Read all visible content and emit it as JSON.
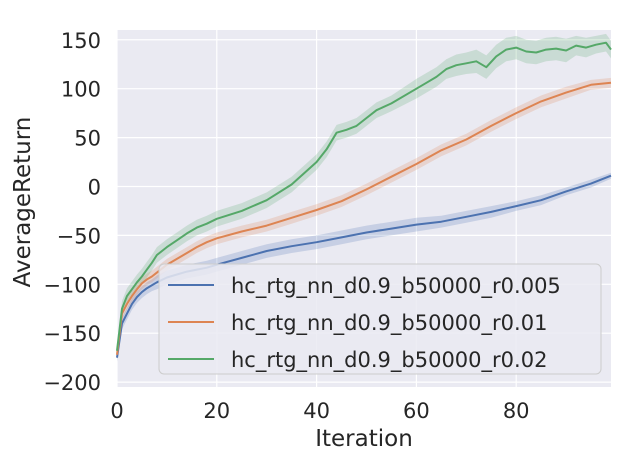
{
  "chart_data": {
    "type": "line",
    "title": "",
    "xlabel": "Iteration",
    "ylabel": "AverageReturn",
    "xlim": [
      0,
      99
    ],
    "ylim": [
      -205,
      160
    ],
    "xticks": [
      0,
      20,
      40,
      60,
      80
    ],
    "yticks": [
      -200,
      -150,
      -100,
      -50,
      0,
      50,
      100,
      150
    ],
    "xtick_labels": [
      "0",
      "20",
      "40",
      "60",
      "80"
    ],
    "ytick_labels": [
      "−200",
      "−150",
      "−100",
      "−50",
      "0",
      "50",
      "100",
      "150"
    ],
    "grid": true,
    "background": "#EAEAF2",
    "legend_position": "lower-right",
    "shaded_band": "variance around each series",
    "series": [
      {
        "name": "hc_rtg_nn_d0.9_b50000_r0.005",
        "color": "#4C72B0",
        "x": [
          0,
          1,
          2,
          3,
          4,
          5,
          6,
          7,
          8,
          10,
          12,
          14,
          16,
          18,
          20,
          25,
          30,
          35,
          40,
          45,
          50,
          55,
          60,
          65,
          70,
          75,
          80,
          85,
          90,
          95,
          99
        ],
        "y": [
          -175,
          -140,
          -130,
          -120,
          -113,
          -108,
          -104,
          -101,
          -98,
          -93,
          -90,
          -87,
          -85,
          -83,
          -80,
          -73,
          -66,
          -61,
          -57,
          -52,
          -47,
          -43,
          -39,
          -36,
          -31,
          -26,
          -20,
          -14,
          -5,
          3,
          11
        ],
        "band": [
          4,
          6,
          6,
          6,
          6,
          6,
          6,
          6,
          7,
          7,
          7,
          7,
          7,
          7,
          7,
          7,
          7,
          7,
          7,
          7,
          7,
          7,
          7,
          6,
          6,
          6,
          5,
          5,
          4,
          4,
          3
        ]
      },
      {
        "name": "hc_rtg_nn_d0.9_b50000_r0.01",
        "color": "#DD8452",
        "x": [
          0,
          1,
          2,
          3,
          4,
          5,
          6,
          7,
          8,
          10,
          12,
          14,
          16,
          18,
          20,
          25,
          30,
          35,
          40,
          45,
          50,
          55,
          60,
          65,
          70,
          75,
          80,
          85,
          90,
          95,
          99
        ],
        "y": [
          -172,
          -130,
          -120,
          -112,
          -105,
          -99,
          -95,
          -92,
          -88,
          -80,
          -74,
          -68,
          -62,
          -57,
          -53,
          -46,
          -40,
          -32,
          -24,
          -15,
          -3,
          10,
          23,
          37,
          48,
          62,
          75,
          87,
          96,
          104,
          106
        ],
        "band": [
          4,
          6,
          6,
          6,
          6,
          6,
          6,
          6,
          6,
          6,
          6,
          6,
          6,
          6,
          6,
          6,
          6,
          6,
          6,
          6,
          6,
          6,
          6,
          6,
          6,
          6,
          6,
          6,
          6,
          5,
          5
        ]
      },
      {
        "name": "hc_rtg_nn_d0.9_b50000_r0.02",
        "color": "#55A868",
        "x": [
          0,
          1,
          2,
          3,
          4,
          5,
          6,
          7,
          8,
          10,
          12,
          14,
          16,
          18,
          20,
          25,
          30,
          35,
          40,
          42,
          44,
          46,
          48,
          50,
          52,
          55,
          60,
          62,
          64,
          66,
          68,
          70,
          72,
          74,
          76,
          78,
          80,
          82,
          84,
          86,
          88,
          90,
          92,
          94,
          96,
          98,
          99
        ],
        "y": [
          -168,
          -125,
          -112,
          -105,
          -98,
          -92,
          -85,
          -78,
          -70,
          -62,
          -55,
          -48,
          -42,
          -38,
          -33,
          -25,
          -14,
          2,
          25,
          38,
          55,
          58,
          62,
          70,
          78,
          85,
          100,
          106,
          112,
          120,
          124,
          126,
          128,
          122,
          133,
          140,
          142,
          138,
          137,
          140,
          141,
          139,
          144,
          142,
          145,
          147,
          140
        ],
        "band": [
          5,
          8,
          8,
          8,
          8,
          8,
          8,
          8,
          8,
          8,
          8,
          8,
          8,
          8,
          8,
          8,
          8,
          8,
          8,
          8,
          8,
          8,
          8,
          8,
          8,
          8,
          10,
          10,
          10,
          10,
          11,
          11,
          12,
          12,
          12,
          12,
          12,
          12,
          12,
          12,
          12,
          12,
          10,
          10,
          9,
          9,
          9
        ]
      }
    ]
  }
}
